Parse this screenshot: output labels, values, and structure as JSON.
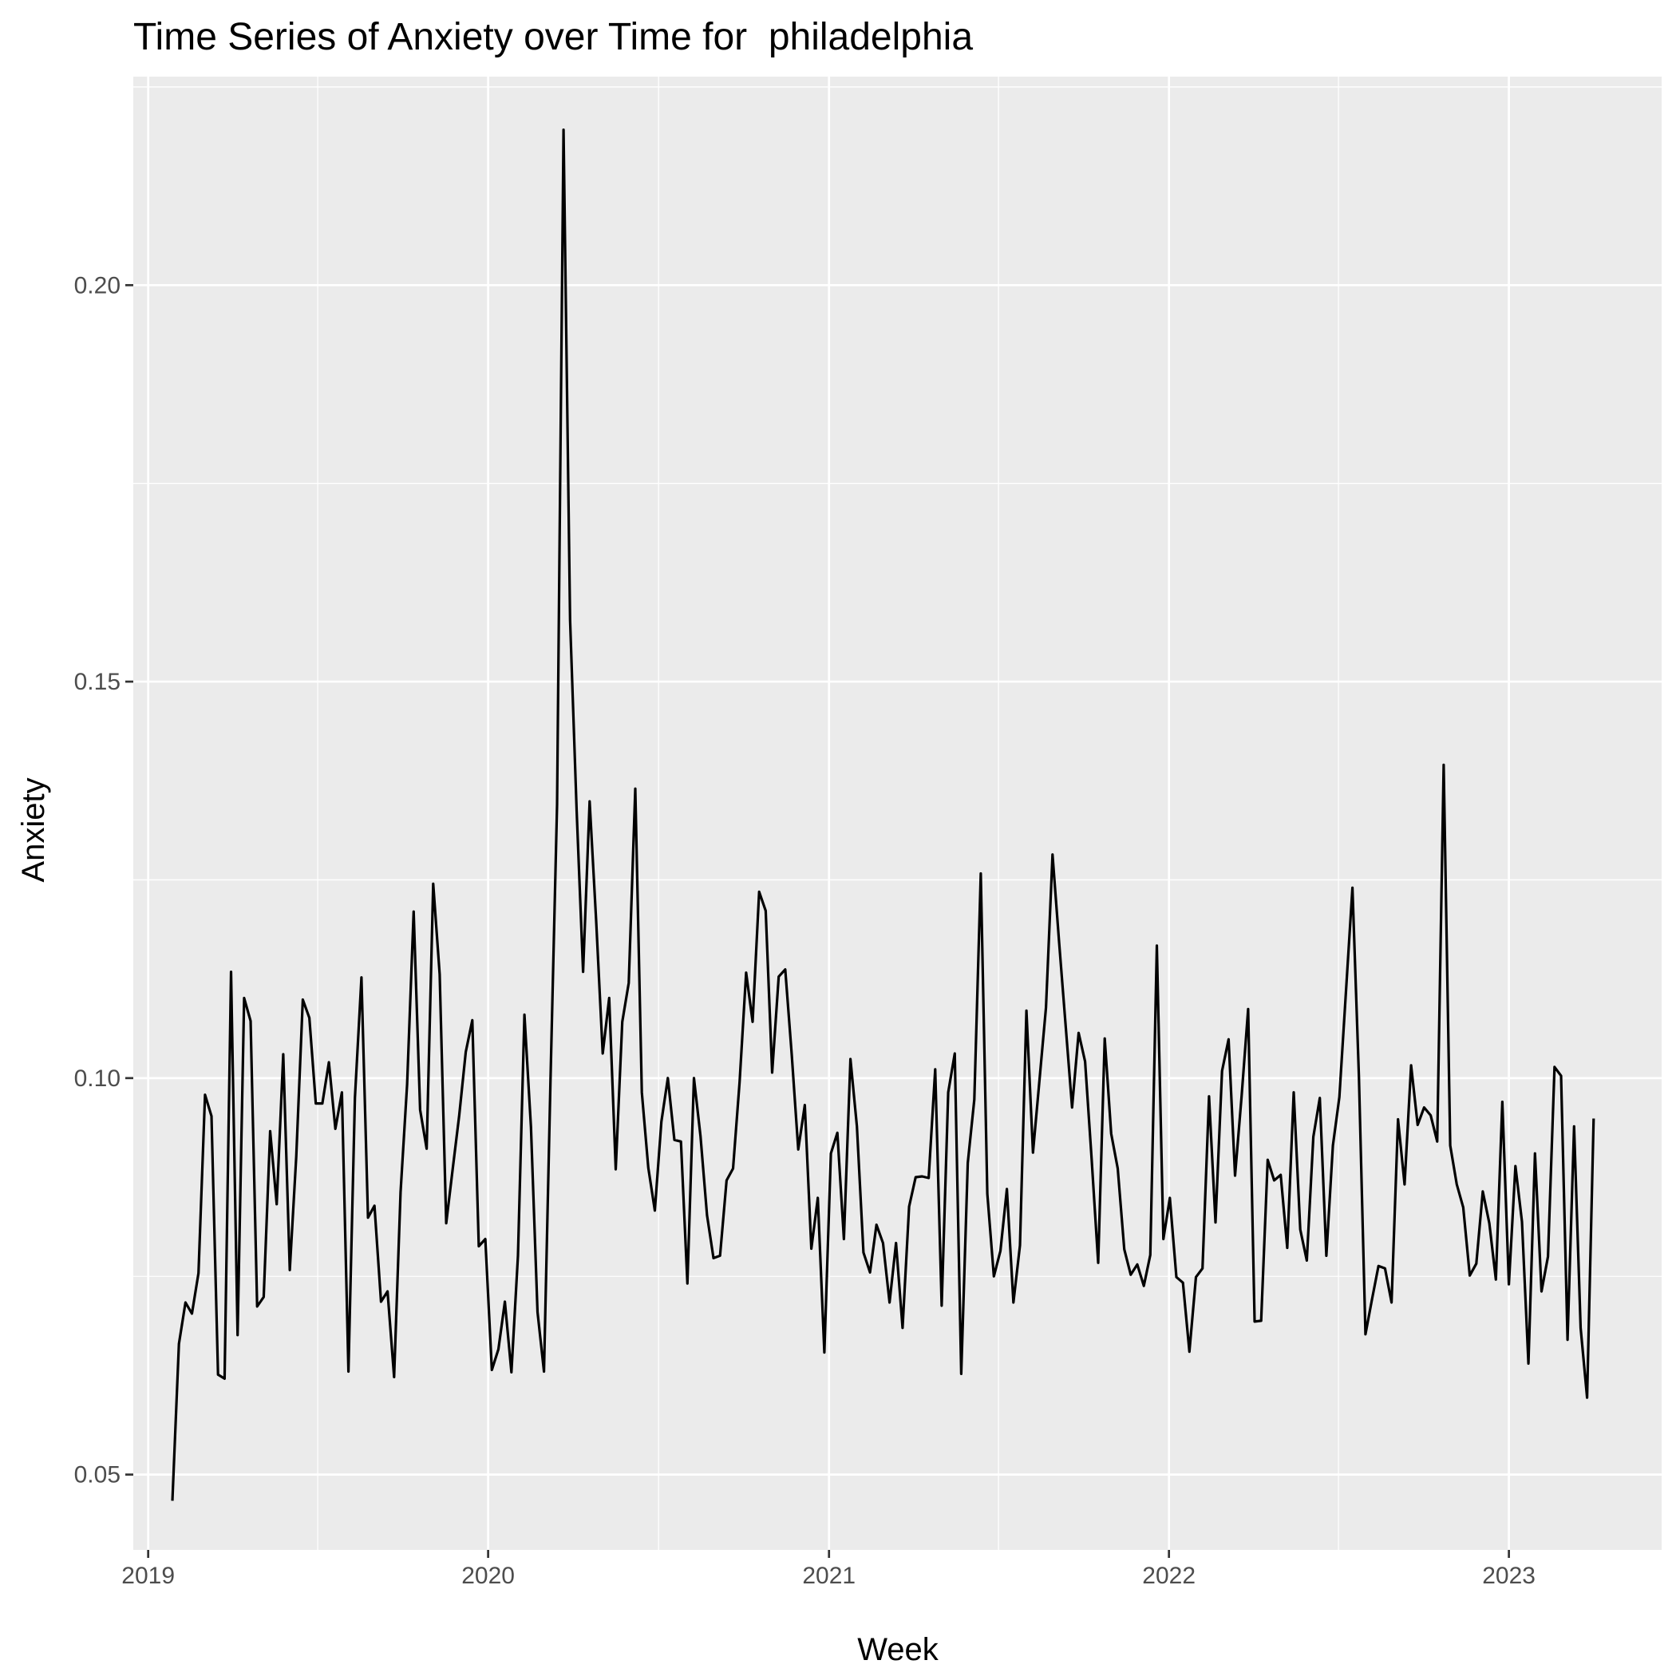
{
  "chart_data": {
    "type": "line",
    "title": "Time Series of Anxiety over Time for  philadelphia",
    "xlabel": "Week",
    "ylabel": "Anxiety",
    "x_tick_labels": [
      "2019",
      "2020",
      "2021",
      "2022",
      "2023"
    ],
    "y_tick_labels": [
      "0.05",
      "0.10",
      "0.15",
      "0.20"
    ],
    "y_ticks": [
      0.05,
      0.1,
      0.15,
      0.2
    ],
    "xlim": [
      "2018-12-16",
      "2023-06-14"
    ],
    "ylim": [
      0.0405,
      0.2263
    ],
    "grid": true,
    "line_color": "#000000",
    "panel_color": "#EBEBEB",
    "gridline_color": "#FFFFFF",
    "series": [
      {
        "x": [
          "2019-01-27",
          "2019-02-03",
          "2019-02-10",
          "2019-02-17",
          "2019-02-24",
          "2019-03-03",
          "2019-03-10",
          "2019-03-17",
          "2019-03-24",
          "2019-03-31",
          "2019-04-07",
          "2019-04-14",
          "2019-04-21",
          "2019-04-28",
          "2019-05-05",
          "2019-05-12",
          "2019-05-19",
          "2019-05-26",
          "2019-06-02",
          "2019-06-09",
          "2019-06-16",
          "2019-06-23",
          "2019-06-30",
          "2019-07-07",
          "2019-07-14",
          "2019-07-21",
          "2019-07-28",
          "2019-08-04",
          "2019-08-11",
          "2019-08-18",
          "2019-08-25",
          "2019-09-01",
          "2019-09-08",
          "2019-09-15",
          "2019-09-22",
          "2019-09-29",
          "2019-10-06",
          "2019-10-13",
          "2019-10-20",
          "2019-10-27",
          "2019-11-03",
          "2019-11-10",
          "2019-11-17",
          "2019-11-24",
          "2019-12-01",
          "2019-12-08",
          "2019-12-15",
          "2019-12-22",
          "2019-12-29",
          "2020-01-05",
          "2020-01-12",
          "2020-01-19",
          "2020-01-26",
          "2020-02-02",
          "2020-02-09",
          "2020-02-16",
          "2020-02-23",
          "2020-03-01",
          "2020-03-08",
          "2020-03-15",
          "2020-03-22",
          "2020-03-29",
          "2020-04-05",
          "2020-04-12",
          "2020-04-19",
          "2020-04-26",
          "2020-05-03",
          "2020-05-10",
          "2020-05-17",
          "2020-05-24",
          "2020-05-31",
          "2020-06-07",
          "2020-06-14",
          "2020-06-21",
          "2020-06-28",
          "2020-07-05",
          "2020-07-12",
          "2020-07-19",
          "2020-07-26",
          "2020-08-02",
          "2020-08-09",
          "2020-08-16",
          "2020-08-23",
          "2020-08-30",
          "2020-09-06",
          "2020-09-13",
          "2020-09-20",
          "2020-09-27",
          "2020-10-04",
          "2020-10-11",
          "2020-10-18",
          "2020-10-25",
          "2020-11-01",
          "2020-11-08",
          "2020-11-15",
          "2020-11-22",
          "2020-11-29",
          "2020-12-06",
          "2020-12-13",
          "2020-12-20",
          "2020-12-27",
          "2021-01-03",
          "2021-01-10",
          "2021-01-17",
          "2021-01-24",
          "2021-01-31",
          "2021-02-07",
          "2021-02-14",
          "2021-02-21",
          "2021-02-28",
          "2021-03-07",
          "2021-03-14",
          "2021-03-21",
          "2021-03-28",
          "2021-04-04",
          "2021-04-11",
          "2021-04-18",
          "2021-04-25",
          "2021-05-02",
          "2021-05-09",
          "2021-05-16",
          "2021-05-23",
          "2021-05-30",
          "2021-06-06",
          "2021-06-13",
          "2021-06-20",
          "2021-06-27",
          "2021-07-04",
          "2021-07-11",
          "2021-07-18",
          "2021-07-25",
          "2021-08-01",
          "2021-08-08",
          "2021-08-15",
          "2021-08-22",
          "2021-08-29",
          "2021-09-05",
          "2021-09-12",
          "2021-09-19",
          "2021-09-26",
          "2021-10-03",
          "2021-10-10",
          "2021-10-17",
          "2021-10-24",
          "2021-10-31",
          "2021-11-07",
          "2021-11-14",
          "2021-11-21",
          "2021-11-28",
          "2021-12-05",
          "2021-12-12",
          "2021-12-19",
          "2021-12-26",
          "2022-01-02",
          "2022-01-09",
          "2022-01-16",
          "2022-01-23",
          "2022-01-30",
          "2022-02-06",
          "2022-02-13",
          "2022-02-20",
          "2022-02-27",
          "2022-03-06",
          "2022-03-13",
          "2022-03-20",
          "2022-03-27",
          "2022-04-03",
          "2022-04-10",
          "2022-04-17",
          "2022-04-24",
          "2022-05-01",
          "2022-05-08",
          "2022-05-15",
          "2022-05-22",
          "2022-05-29",
          "2022-06-05",
          "2022-06-12",
          "2022-06-19",
          "2022-06-26",
          "2022-07-03",
          "2022-07-17",
          "2022-07-24",
          "2022-07-31",
          "2022-08-07",
          "2022-08-14",
          "2022-08-21",
          "2022-08-28",
          "2022-09-04",
          "2022-09-11",
          "2022-09-18",
          "2022-09-25",
          "2022-10-02",
          "2022-10-09",
          "2022-10-16",
          "2022-10-23",
          "2022-10-30",
          "2022-11-06",
          "2022-11-13",
          "2022-11-20",
          "2022-11-27",
          "2022-12-04",
          "2022-12-11",
          "2022-12-18",
          "2022-12-25",
          "2023-01-01",
          "2023-01-08",
          "2023-01-15",
          "2023-01-22",
          "2023-01-29",
          "2023-02-05",
          "2023-02-12",
          "2023-02-19",
          "2023-02-26",
          "2023-03-05",
          "2023-03-12",
          "2023-03-19",
          "2023-03-26",
          "2023-04-02"
        ],
        "y": [
          0.0467,
          0.0665,
          0.0717,
          0.0703,
          0.0754,
          0.0979,
          0.0952,
          0.0626,
          0.0621,
          0.1134,
          0.0676,
          0.1101,
          0.1072,
          0.0712,
          0.0724,
          0.0933,
          0.0841,
          0.103,
          0.0758,
          0.0901,
          0.1099,
          0.1076,
          0.0968,
          0.0968,
          0.102,
          0.0936,
          0.0982,
          0.063,
          0.0975,
          0.1127,
          0.0824,
          0.0839,
          0.0718,
          0.0731,
          0.0623,
          0.0856,
          0.0992,
          0.121,
          0.096,
          0.0911,
          0.1245,
          0.1131,
          0.0817,
          0.0886,
          0.0953,
          0.1033,
          0.1073,
          0.0788,
          0.0797,
          0.0632,
          0.0658,
          0.0718,
          0.0629,
          0.0776,
          0.108,
          0.0938,
          0.0705,
          0.063,
          0.0999,
          0.1345,
          0.2196,
          0.1578,
          0.1338,
          0.1134,
          0.1349,
          0.1198,
          0.1031,
          0.1101,
          0.0885,
          0.1071,
          0.112,
          0.1365,
          0.0982,
          0.0887,
          0.0833,
          0.0945,
          0.1,
          0.0922,
          0.092,
          0.0741,
          0.1,
          0.0927,
          0.0827,
          0.0773,
          0.0776,
          0.0871,
          0.0886,
          0.0995,
          0.1133,
          0.1071,
          0.1235,
          0.1211,
          0.1007,
          0.1128,
          0.1137,
          0.103,
          0.091,
          0.0966,
          0.0785,
          0.0849,
          0.0654,
          0.0905,
          0.0931,
          0.0797,
          0.1024,
          0.0939,
          0.078,
          0.0755,
          0.0815,
          0.0792,
          0.0717,
          0.0792,
          0.0685,
          0.0838,
          0.0875,
          0.0876,
          0.0874,
          0.1011,
          0.0713,
          0.0982,
          0.1031,
          0.0627,
          0.0893,
          0.0973,
          0.1258,
          0.0854,
          0.075,
          0.0782,
          0.086,
          0.0717,
          0.0789,
          0.1085,
          0.0906,
          0.0998,
          0.1089,
          0.1282,
          0.1172,
          0.1068,
          0.0963,
          0.1057,
          0.1021,
          0.0898,
          0.0767,
          0.105,
          0.093,
          0.0886,
          0.0784,
          0.0752,
          0.0765,
          0.0738,
          0.0777,
          0.1167,
          0.0797,
          0.0849,
          0.0749,
          0.0742,
          0.0655,
          0.0749,
          0.076,
          0.0977,
          0.0818,
          0.1009,
          0.1049,
          0.0877,
          0.0977,
          0.1087,
          0.0693,
          0.0694,
          0.0897,
          0.0871,
          0.0878,
          0.0786,
          0.0982,
          0.0809,
          0.077,
          0.0926,
          0.0975,
          0.0776,
          0.0915,
          0.0976,
          0.124,
          0.1002,
          0.0677,
          0.0721,
          0.0763,
          0.076,
          0.0717,
          0.0948,
          0.0866,
          0.1016,
          0.0941,
          0.0963,
          0.0953,
          0.092,
          0.1395,
          0.0915,
          0.0866,
          0.0837,
          0.0751,
          0.0766,
          0.0857,
          0.0817,
          0.0746,
          0.097,
          0.074,
          0.0889,
          0.0819,
          0.064,
          0.0905,
          0.0731,
          0.0775,
          0.1014,
          0.1003,
          0.067,
          0.0939,
          0.0685,
          0.0597,
          0.0949
        ]
      }
    ]
  }
}
